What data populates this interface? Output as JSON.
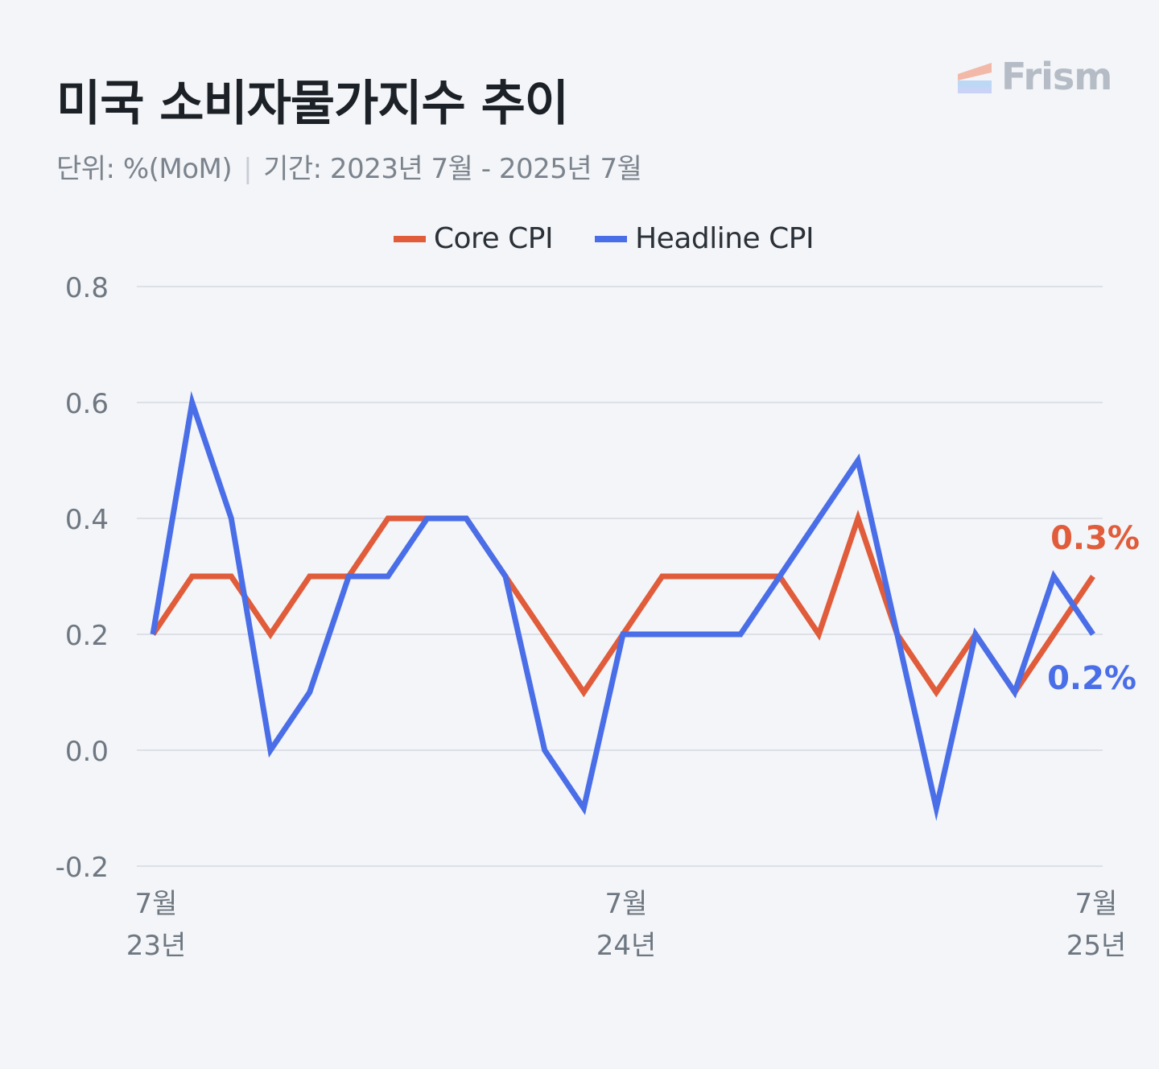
{
  "header": {
    "title": "미국 소비자물가지수 추이",
    "unit": "단위: %(MoM)",
    "separator": "|",
    "period": "기간: 2023년 7월 - 2025년 7월"
  },
  "brand": {
    "name": "Frism"
  },
  "colors": {
    "core": "#e05c3a",
    "headline": "#4a6ee8",
    "grid": "#d6dae0",
    "axis_text": "#6e7781"
  },
  "chart_data": {
    "type": "line",
    "x": [
      "2023-07",
      "2023-08",
      "2023-09",
      "2023-10",
      "2023-11",
      "2023-12",
      "2024-01",
      "2024-02",
      "2024-03",
      "2024-04",
      "2024-05",
      "2024-06",
      "2024-07",
      "2024-08",
      "2024-09",
      "2024-10",
      "2024-11",
      "2024-12",
      "2025-01",
      "2025-02",
      "2025-03",
      "2025-04",
      "2025-05",
      "2025-06",
      "2025-07"
    ],
    "x_ticks": [
      {
        "x": "2023-07",
        "month": "7월",
        "year": "23년"
      },
      {
        "x": "2024-07",
        "month": "7월",
        "year": "24년"
      },
      {
        "x": "2025-07",
        "month": "7월",
        "year": "25년"
      }
    ],
    "ylim": [
      -0.2,
      0.8
    ],
    "yticks": [
      "0.8",
      "0.6",
      "0.4",
      "0.2",
      "0.0",
      "-0.2"
    ],
    "grid": true,
    "legend": "top-center",
    "series": [
      {
        "name": "Core CPI",
        "key": "core",
        "values": [
          0.2,
          0.3,
          0.3,
          0.2,
          0.3,
          0.3,
          0.4,
          0.4,
          0.4,
          0.3,
          0.2,
          0.1,
          0.2,
          0.3,
          0.3,
          0.3,
          0.3,
          0.2,
          0.4,
          0.2,
          0.1,
          0.2,
          0.1,
          0.2,
          0.3
        ],
        "end_label": "0.3%"
      },
      {
        "name": "Headline CPI",
        "key": "headline",
        "values": [
          0.2,
          0.6,
          0.4,
          0.0,
          0.1,
          0.3,
          0.3,
          0.4,
          0.4,
          0.3,
          0.0,
          -0.1,
          0.2,
          0.2,
          0.2,
          0.2,
          0.3,
          0.4,
          0.5,
          0.2,
          -0.1,
          0.2,
          0.1,
          0.3,
          0.2
        ],
        "end_label": "0.2%"
      }
    ]
  }
}
